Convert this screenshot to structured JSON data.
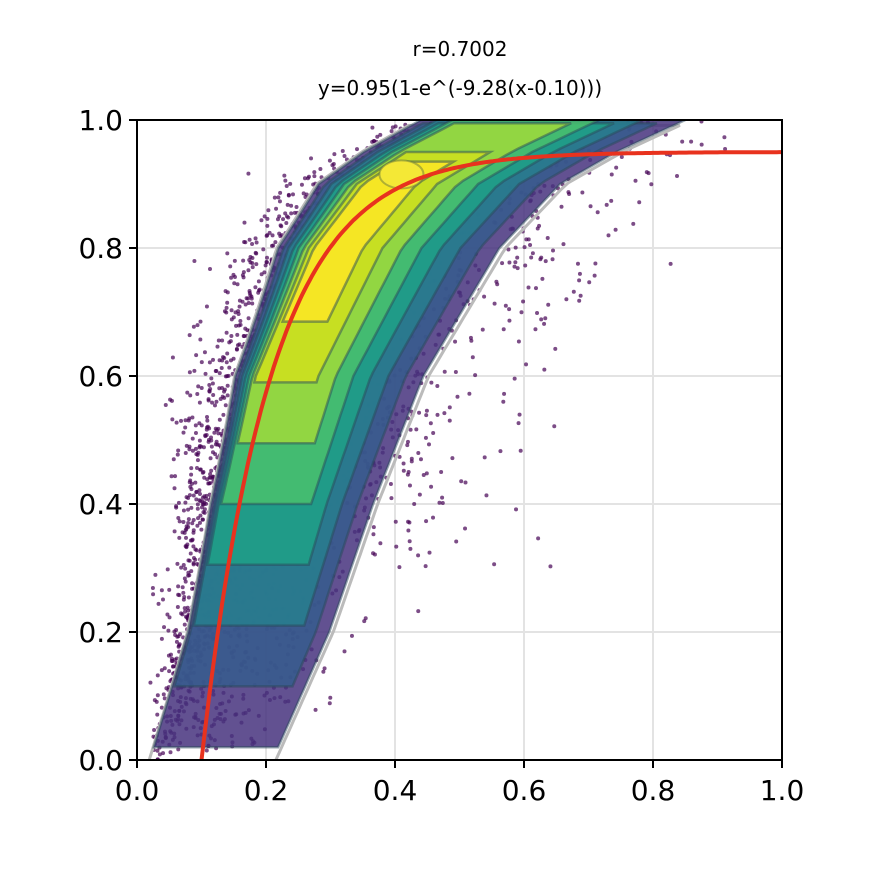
{
  "chart_data": {
    "type": "scatter",
    "title": "r=0.7002",
    "subtitle": "y=0.95(1-e^(-9.28(x-0.10)))",
    "fit": {
      "a": 0.95,
      "b": 9.28,
      "c": 0.1,
      "color": "#e8321e"
    },
    "correlation": 0.7002,
    "xlabel": "",
    "ylabel": "",
    "xlim": [
      0.0,
      1.0
    ],
    "ylim": [
      0.0,
      1.0
    ],
    "xticks": [
      "0.0",
      "0.2",
      "0.4",
      "0.6",
      "0.8",
      "1.0"
    ],
    "yticks": [
      "0.0",
      "0.2",
      "0.4",
      "0.6",
      "0.8",
      "1.0"
    ],
    "grid": true,
    "density_overlay": "filled KDE contours (viridis)",
    "point_color": "#440154",
    "colormap": [
      "#46327e",
      "#365c8d",
      "#277f8e",
      "#1fa187",
      "#4ac16d",
      "#a0da39",
      "#d0e11c",
      "#fde725"
    ]
  }
}
